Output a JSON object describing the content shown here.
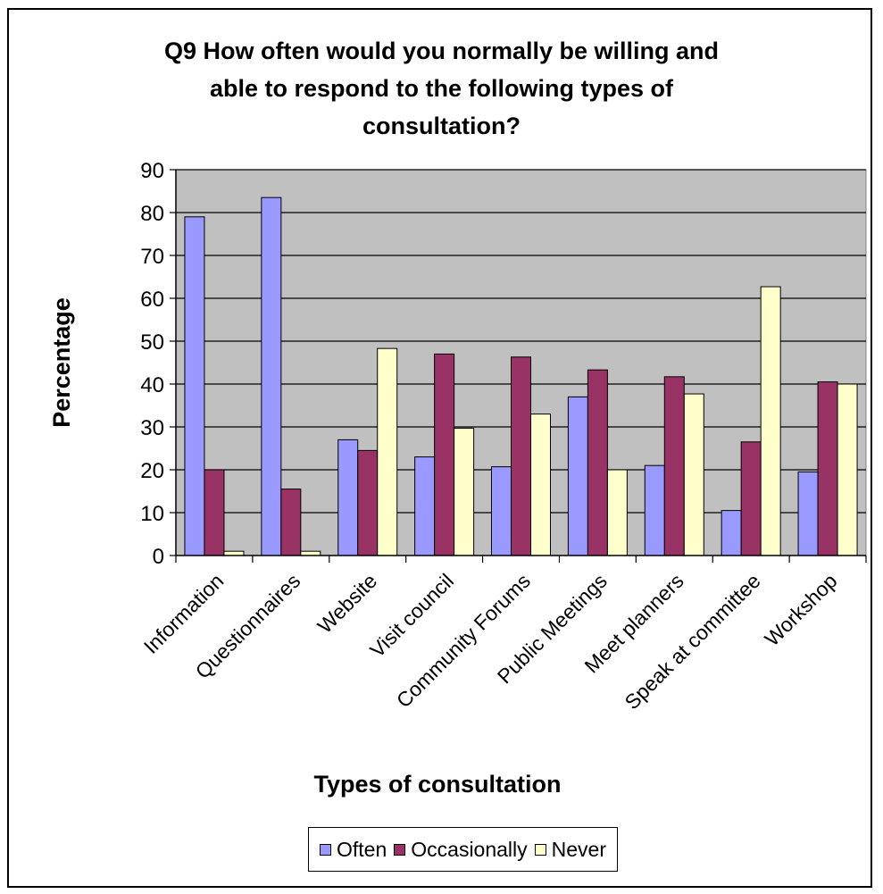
{
  "chart_data": {
    "type": "bar",
    "title_lines": [
      "Q9 How often would you normally be willing and",
      "able to respond to the following types of",
      "consultation?"
    ],
    "xlabel": "Types of consultation",
    "ylabel": "Percentage",
    "ylim": [
      0,
      90
    ],
    "yticks": [
      0,
      10,
      20,
      30,
      40,
      50,
      60,
      70,
      80,
      90
    ],
    "grid": true,
    "legend_position": "bottom",
    "plot_background": "#c0c0c0",
    "categories": [
      "Information",
      "Questionnaires",
      "Website",
      "Visit council",
      "Community Forums",
      "Public Meetings",
      "Meet planners",
      "Speak at committee",
      "Workshop"
    ],
    "series": [
      {
        "name": "Often",
        "color": "#9999ff",
        "values": [
          79,
          83.5,
          27,
          23,
          20.7,
          37,
          21,
          10.5,
          19.5
        ]
      },
      {
        "name": "Occasionally",
        "color": "#993366",
        "values": [
          20,
          15.5,
          24.5,
          47,
          46.3,
          43.3,
          41.7,
          26.5,
          40.5
        ]
      },
      {
        "name": "Never",
        "color": "#ffffcc",
        "values": [
          1,
          1,
          48.3,
          29.7,
          33,
          20,
          37.7,
          62.7,
          40
        ]
      }
    ]
  }
}
